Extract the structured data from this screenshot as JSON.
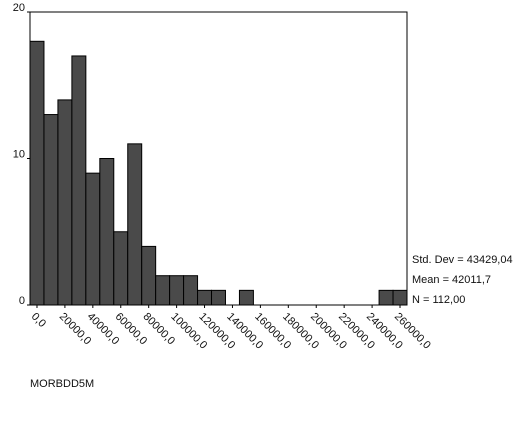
{
  "chart_data": {
    "type": "histogram",
    "x_label": "MORBDD5M",
    "bins": [
      -5000,
      5000,
      15000,
      25000,
      35000,
      45000,
      55000,
      65000,
      75000,
      85000,
      95000,
      105000,
      115000,
      125000,
      135000,
      145000,
      155000,
      165000,
      175000,
      185000,
      195000,
      205000,
      215000,
      225000,
      235000,
      245000,
      255000,
      265000
    ],
    "values": [
      18,
      13,
      14,
      17,
      9,
      10,
      5,
      11,
      4,
      2,
      2,
      2,
      1,
      1,
      0,
      1,
      0,
      0,
      0,
      0,
      0,
      0,
      0,
      0,
      0,
      1,
      1
    ],
    "color": "#4a4a4a",
    "xlim": [
      -5000,
      265000
    ],
    "xticks": [
      {
        "value": 0,
        "label": "0,0"
      },
      {
        "value": 20000,
        "label": "20000,0"
      },
      {
        "value": 40000,
        "label": "40000,0"
      },
      {
        "value": 60000,
        "label": "60000,0"
      },
      {
        "value": 80000,
        "label": "80000,0"
      },
      {
        "value": 100000,
        "label": "100000,0"
      },
      {
        "value": 120000,
        "label": "120000,0"
      },
      {
        "value": 140000,
        "label": "140000,0"
      },
      {
        "value": 160000,
        "label": "160000,0"
      },
      {
        "value": 180000,
        "label": "180000,0"
      },
      {
        "value": 200000,
        "label": "200000,0"
      },
      {
        "value": 220000,
        "label": "220000,0"
      },
      {
        "value": 240000,
        "label": "240000,0"
      },
      {
        "value": 260000,
        "label": "260000,0"
      }
    ],
    "ylim": [
      0,
      20
    ],
    "yticks": [
      0,
      10,
      20
    ],
    "stats": [
      "Std. Dev = 43429,04",
      "Mean = 42011,7",
      "N = 112,00"
    ]
  }
}
